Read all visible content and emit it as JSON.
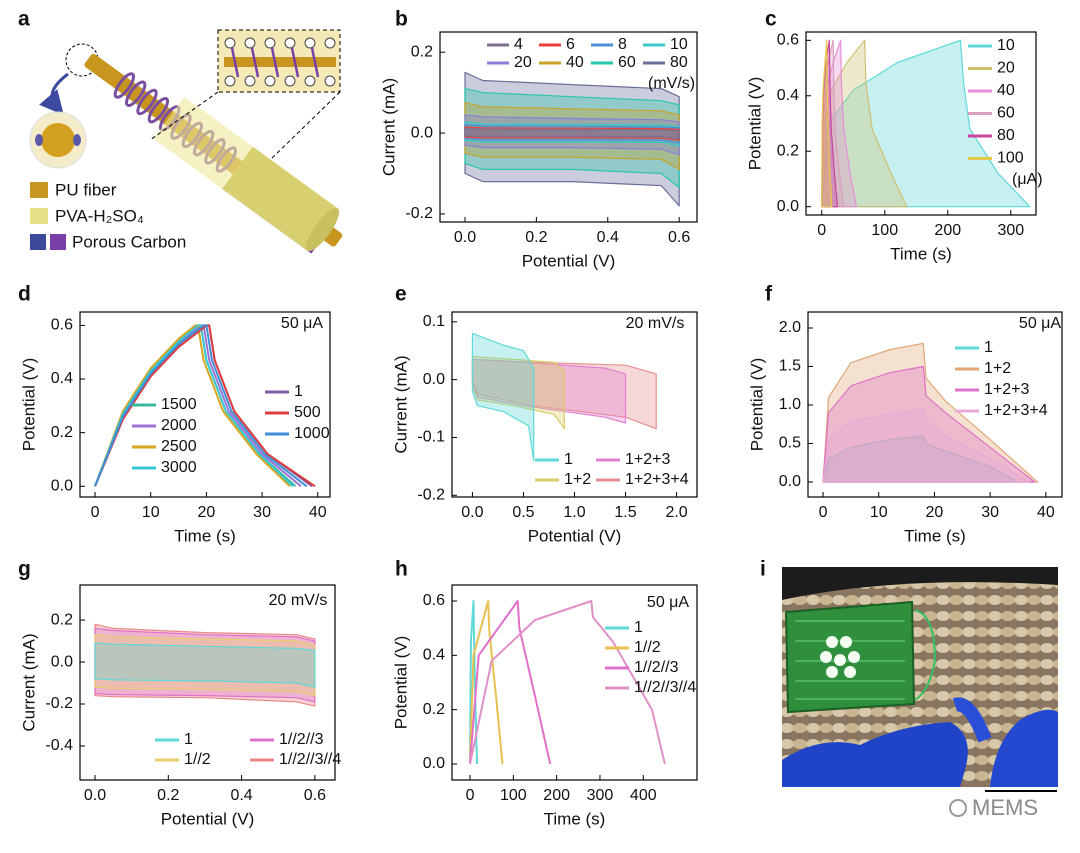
{
  "diagram": {
    "panel_label": "a",
    "legend": [
      "PU fiber",
      "PVA-H₂SO₄",
      "Porous Carbon"
    ]
  },
  "photo": {
    "panel_label": "i",
    "watermark": "MEMS"
  },
  "chart_data": [
    {
      "panel_label": "b",
      "type": "loop",
      "fill": true,
      "xlabel": "Potential (V)",
      "ylabel": "Current (mA)",
      "xlim": [
        -0.07,
        0.65
      ],
      "xticks": [
        {
          "value": 0,
          "label": "0.0"
        },
        0.2,
        0.4,
        0.6
      ],
      "ylim": [
        -0.22,
        0.25
      ],
      "yticks": [
        -0.2,
        {
          "value": 0,
          "label": "0.0"
        },
        0.2
      ],
      "legend_columns": 4,
      "legend_fill": "row",
      "legend_unit": "(mV/s)",
      "x": [
        0,
        0,
        0.05,
        0.3,
        0.55,
        0.6,
        0.6,
        0.55,
        0.3,
        0.05
      ],
      "series": [
        {
          "name": "4",
          "color": "#7b6f8f",
          "values": [
            -0.007,
            0.011,
            0.009,
            0.008,
            0.008,
            0.006,
            -0.013,
            -0.009,
            -0.008,
            -0.008
          ]
        },
        {
          "name": "6",
          "color": "#e8413c",
          "values": [
            -0.01,
            0.015,
            0.013,
            0.012,
            0.011,
            0.009,
            -0.018,
            -0.013,
            -0.012,
            -0.012
          ]
        },
        {
          "name": "8",
          "color": "#4a8fd0",
          "values": [
            -0.014,
            0.021,
            0.018,
            0.017,
            0.015,
            0.013,
            -0.025,
            -0.018,
            -0.017,
            -0.017
          ]
        },
        {
          "name": "10",
          "color": "#3cc8c8",
          "values": [
            -0.018,
            0.027,
            0.023,
            0.022,
            0.02,
            0.016,
            -0.032,
            -0.023,
            -0.022,
            -0.022
          ]
        },
        {
          "name": "20",
          "color": "#8a7fd8",
          "values": [
            -0.03,
            0.045,
            0.04,
            0.036,
            0.033,
            0.027,
            -0.054,
            -0.04,
            -0.036,
            -0.036
          ]
        },
        {
          "name": "40",
          "color": "#c9a227",
          "values": [
            -0.05,
            0.075,
            0.065,
            0.06,
            0.055,
            0.045,
            -0.09,
            -0.065,
            -0.06,
            -0.06
          ]
        },
        {
          "name": "60",
          "color": "#29c7a8",
          "values": [
            -0.075,
            0.11,
            0.1,
            0.09,
            0.08,
            0.07,
            -0.135,
            -0.1,
            -0.09,
            -0.09
          ]
        },
        {
          "name": "80",
          "color": "#6a6f9a",
          "values": [
            -0.1,
            0.15,
            0.13,
            0.12,
            0.11,
            0.09,
            -0.18,
            -0.13,
            -0.12,
            -0.12
          ]
        }
      ]
    },
    {
      "panel_label": "c",
      "type": "area",
      "fill": true,
      "xlabel": "Time (s)",
      "ylabel": "Potential (V)",
      "xlim": [
        -25,
        340
      ],
      "xticks": [
        0,
        100,
        200,
        300
      ],
      "ylim": [
        -0.03,
        0.63
      ],
      "yticks": [
        {
          "value": 0,
          "label": "0.0"
        },
        0.2,
        0.4,
        0.6
      ],
      "legend_columns": 1,
      "legend_unit": "(μA)",
      "series": [
        {
          "name": "10",
          "color": "#5fd8d8",
          "x": [
            0,
            10,
            50,
            120,
            220,
            225,
            235,
            280,
            330
          ],
          "values": [
            0,
            0.3,
            0.42,
            0.52,
            0.6,
            0.45,
            0.28,
            0.12,
            0
          ]
        },
        {
          "name": "20",
          "color": "#cfc070",
          "x": [
            0,
            4,
            15,
            40,
            68,
            70,
            80,
            110,
            135
          ],
          "values": [
            0,
            0.3,
            0.42,
            0.52,
            0.6,
            0.45,
            0.28,
            0.12,
            0
          ]
        },
        {
          "name": "40",
          "color": "#e58fd8",
          "x": [
            0,
            2,
            7,
            18,
            30,
            31,
            35,
            45,
            55
          ],
          "values": [
            0,
            0.3,
            0.42,
            0.52,
            0.6,
            0.45,
            0.28,
            0.12,
            0
          ]
        },
        {
          "name": "60",
          "color": "#d9a0c0",
          "x": [
            0,
            1,
            4,
            10,
            18,
            19,
            21,
            28,
            35
          ],
          "values": [
            0,
            0.3,
            0.42,
            0.52,
            0.6,
            0.45,
            0.28,
            0.12,
            0
          ]
        },
        {
          "name": "80",
          "color": "#c8449e",
          "x": [
            0,
            1,
            3,
            7,
            12,
            13,
            15,
            20,
            25
          ],
          "values": [
            0,
            0.3,
            0.42,
            0.52,
            0.6,
            0.45,
            0.28,
            0.12,
            0
          ]
        },
        {
          "name": "100",
          "color": "#e6c84a",
          "x": [
            0,
            0.5,
            2,
            5,
            8,
            8.5,
            10,
            13,
            16
          ],
          "values": [
            0,
            0.3,
            0.42,
            0.52,
            0.6,
            0.45,
            0.28,
            0.12,
            0
          ]
        }
      ]
    },
    {
      "panel_label": "d",
      "type": "line",
      "annotation": "50 μA",
      "xlabel": "Time (s)",
      "ylabel": "Potential (V)",
      "xlim": [
        -2.7,
        42.2
      ],
      "xticks": [
        0,
        10,
        20,
        30,
        40
      ],
      "ylim": [
        -0.04,
        0.65
      ],
      "yticks": [
        {
          "value": 0,
          "label": "0.0"
        },
        0.2,
        0.4,
        0.6
      ],
      "legend_columns": 2,
      "series": [
        {
          "name": "1500",
          "color": "#3ab89c",
          "x": [
            0,
            5,
            10,
            15,
            18.5,
            19,
            20,
            23.5,
            29.5,
            36
          ],
          "values": [
            0,
            0.27,
            0.43,
            0.54,
            0.6,
            0.6,
            0.47,
            0.28,
            0.12,
            0
          ]
        },
        {
          "name": "2000",
          "color": "#9b72d6",
          "x": [
            0,
            5,
            10,
            15,
            19,
            19.5,
            20.5,
            24,
            30,
            37
          ],
          "values": [
            0,
            0.26,
            0.42,
            0.53,
            0.6,
            0.6,
            0.47,
            0.28,
            0.12,
            0
          ]
        },
        {
          "name": "2500",
          "color": "#d8a520",
          "x": [
            0,
            5,
            10,
            15,
            18,
            18.5,
            19.5,
            23,
            29,
            35
          ],
          "values": [
            0,
            0.28,
            0.44,
            0.55,
            0.6,
            0.6,
            0.47,
            0.28,
            0.12,
            0
          ]
        },
        {
          "name": "3000",
          "color": "#35c8d2",
          "x": [
            0,
            5,
            10,
            15,
            18.5,
            19,
            20,
            23.5,
            29.5,
            35.5
          ],
          "values": [
            0,
            0.27,
            0.43,
            0.54,
            0.6,
            0.6,
            0.47,
            0.28,
            0.12,
            0
          ]
        },
        {
          "name": "1",
          "color": "#7b5aa8",
          "x": [
            0,
            5,
            10,
            15,
            20,
            20.5,
            21.5,
            25,
            31,
            39
          ],
          "values": [
            0,
            0.25,
            0.41,
            0.52,
            0.6,
            0.6,
            0.47,
            0.28,
            0.12,
            0
          ]
        },
        {
          "name": "500",
          "color": "#e03c3c",
          "x": [
            0,
            5,
            10,
            15,
            20,
            20.5,
            21.5,
            25,
            31,
            39.5
          ],
          "values": [
            0,
            0.25,
            0.41,
            0.52,
            0.6,
            0.6,
            0.47,
            0.28,
            0.12,
            0
          ]
        },
        {
          "name": "1000",
          "color": "#3e8fd8",
          "x": [
            0,
            5,
            10,
            15,
            19.5,
            20,
            21,
            24.5,
            30.5,
            38
          ],
          "values": [
            0,
            0.26,
            0.42,
            0.53,
            0.6,
            0.6,
            0.47,
            0.28,
            0.12,
            0
          ]
        }
      ]
    },
    {
      "panel_label": "e",
      "type": "loop",
      "fill": true,
      "annotation": "20 mV/s",
      "xlabel": "Potential (V)",
      "ylabel": "Current (mA)",
      "xlim": [
        -0.2,
        2.2
      ],
      "xticks": [
        {
          "value": 0,
          "label": "0.0"
        },
        0.5,
        {
          "value": 1,
          "label": "1.0"
        },
        1.5,
        {
          "value": 2,
          "label": "2.0"
        }
      ],
      "ylim": [
        -0.203,
        0.117
      ],
      "yticks": [
        -0.2,
        -0.1,
        {
          "value": 0,
          "label": "0.0"
        },
        0.1
      ],
      "legend_columns": 2,
      "series": [
        {
          "name": "1",
          "color": "#5fd8d8",
          "x": [
            0,
            0,
            0.3,
            0.5,
            0.6,
            0.6,
            0.55,
            0.3,
            0.05,
            0
          ],
          "values": [
            -0.02,
            0.08,
            0.06,
            0.05,
            0.02,
            -0.14,
            -0.08,
            -0.055,
            -0.045,
            -0.02
          ]
        },
        {
          "name": "1+2",
          "color": "#d8cc66",
          "x": [
            0,
            0,
            0.4,
            0.8,
            0.9,
            0.9,
            0.8,
            0.4,
            0.05,
            0
          ],
          "values": [
            -0.01,
            0.04,
            0.035,
            0.03,
            0.015,
            -0.085,
            -0.06,
            -0.045,
            -0.035,
            -0.01
          ]
        },
        {
          "name": "1+2+3",
          "color": "#e07fd0",
          "x": [
            0,
            0,
            0.5,
            1.3,
            1.5,
            1.5,
            1.3,
            0.5,
            0.05,
            0
          ],
          "values": [
            -0.005,
            0.035,
            0.03,
            0.02,
            0.01,
            -0.075,
            -0.065,
            -0.045,
            -0.03,
            -0.005
          ]
        },
        {
          "name": "1+2+3+4",
          "color": "#e89090",
          "x": [
            0,
            0,
            0.6,
            1.5,
            1.8,
            1.8,
            1.5,
            0.6,
            0.05,
            0
          ],
          "values": [
            0,
            0.035,
            0.03,
            0.025,
            0.01,
            -0.085,
            -0.065,
            -0.045,
            -0.025,
            0
          ]
        }
      ]
    },
    {
      "panel_label": "f",
      "type": "area",
      "fill": true,
      "annotation": "50 μA",
      "xlabel": "Time (s)",
      "ylabel": "Potential (V)",
      "xlim": [
        -2.7,
        42.9
      ],
      "xticks": [
        0,
        10,
        20,
        30,
        40
      ],
      "ylim": [
        -0.195,
        2.208
      ],
      "yticks": [
        {
          "value": 0,
          "label": "0.0"
        },
        0.5,
        {
          "value": 1,
          "label": "1.0"
        },
        1.5,
        {
          "value": 2,
          "label": "2.0"
        }
      ],
      "legend_columns": 1,
      "series": [
        {
          "name": "1",
          "color": "#5fd8d8",
          "x": [
            0,
            1,
            5,
            12,
            18,
            18.5,
            22,
            30,
            35
          ],
          "values": [
            0,
            0.3,
            0.45,
            0.55,
            0.6,
            0.5,
            0.4,
            0.2,
            0
          ]
        },
        {
          "name": "1+2",
          "color": "#e0a878",
          "x": [
            0,
            1,
            5,
            12,
            18,
            18.5,
            22,
            30,
            38.5
          ],
          "values": [
            0,
            1.1,
            1.55,
            1.72,
            1.8,
            1.35,
            1.05,
            0.55,
            0
          ]
        },
        {
          "name": "1+2+3",
          "color": "#e070c8",
          "x": [
            0,
            1,
            5,
            12,
            18,
            18.5,
            22,
            30,
            38
          ],
          "values": [
            0,
            0.9,
            1.25,
            1.42,
            1.5,
            1.12,
            0.9,
            0.45,
            0
          ]
        },
        {
          "name": "1+2+3+4",
          "color": "#e8a8d8",
          "x": [
            0,
            1,
            5,
            12,
            18,
            18.5,
            22,
            30,
            37
          ],
          "values": [
            0,
            0.55,
            0.78,
            0.88,
            0.95,
            0.8,
            0.6,
            0.3,
            0
          ]
        }
      ]
    },
    {
      "panel_label": "g",
      "type": "loop",
      "fill": true,
      "annotation": "20 mV/s",
      "xlabel": "Potential (V)",
      "ylabel": "Current (mA)",
      "xlim": [
        -0.041,
        0.655
      ],
      "xticks": [
        {
          "value": 0,
          "label": "0.0"
        },
        0.2,
        0.4,
        0.6
      ],
      "ylim": [
        -0.562,
        0.367
      ],
      "yticks": [
        -0.4,
        -0.2,
        {
          "value": 0,
          "label": "0.0"
        },
        0.2
      ],
      "legend_columns": 2,
      "x": [
        0,
        0,
        0.05,
        0.3,
        0.55,
        0.6,
        0.6,
        0.55,
        0.3,
        0.05
      ],
      "series": [
        {
          "name": "1",
          "color": "#5fd8d8",
          "values": [
            -0.08,
            0.09,
            0.085,
            0.075,
            0.065,
            0.055,
            -0.12,
            -0.1,
            -0.09,
            -0.085
          ]
        },
        {
          "name": "1//2",
          "color": "#e8d070",
          "values": [
            -0.12,
            0.13,
            0.12,
            0.11,
            0.1,
            0.08,
            -0.16,
            -0.14,
            -0.13,
            -0.125
          ]
        },
        {
          "name": "1//2//3",
          "color": "#e070c8",
          "values": [
            -0.15,
            0.16,
            0.15,
            0.13,
            0.12,
            0.1,
            -0.19,
            -0.17,
            -0.16,
            -0.155
          ]
        },
        {
          "name": "1//2//3//4",
          "color": "#e88888",
          "values": [
            -0.16,
            0.18,
            0.16,
            0.14,
            0.13,
            0.11,
            -0.21,
            -0.19,
            -0.17,
            -0.165
          ]
        }
      ]
    },
    {
      "panel_label": "h",
      "type": "line",
      "annotation": "50 μA",
      "xlabel": "Time (s)",
      "ylabel": "Potential (V)",
      "xlim": [
        -41.6,
        524
      ],
      "xticks": [
        0,
        100,
        200,
        300,
        400
      ],
      "ylim": [
        -0.059,
        0.659
      ],
      "yticks": [
        {
          "value": 0,
          "label": "0.0"
        },
        0.2,
        0.4,
        0.6
      ],
      "legend_columns": 1,
      "series": [
        {
          "name": "1",
          "color": "#5fd8d8",
          "x": [
            0,
            2,
            8,
            9,
            12,
            16
          ],
          "values": [
            0,
            0.45,
            0.6,
            0.5,
            0.25,
            0
          ]
        },
        {
          "name": "1//2",
          "color": "#e8c050",
          "x": [
            0,
            8,
            42,
            44,
            60,
            75
          ],
          "values": [
            0,
            0.4,
            0.6,
            0.5,
            0.25,
            0
          ]
        },
        {
          "name": "1//2//3",
          "color": "#e070c8",
          "x": [
            0,
            20,
            110,
            114,
            150,
            185
          ],
          "values": [
            0,
            0.4,
            0.6,
            0.5,
            0.25,
            0
          ]
        },
        {
          "name": "1//2//3//4",
          "color": "#e090c8",
          "x": [
            0,
            50,
            150,
            280,
            284,
            330,
            420,
            450
          ],
          "values": [
            0,
            0.38,
            0.53,
            0.6,
            0.54,
            0.45,
            0.2,
            0
          ]
        }
      ]
    }
  ]
}
